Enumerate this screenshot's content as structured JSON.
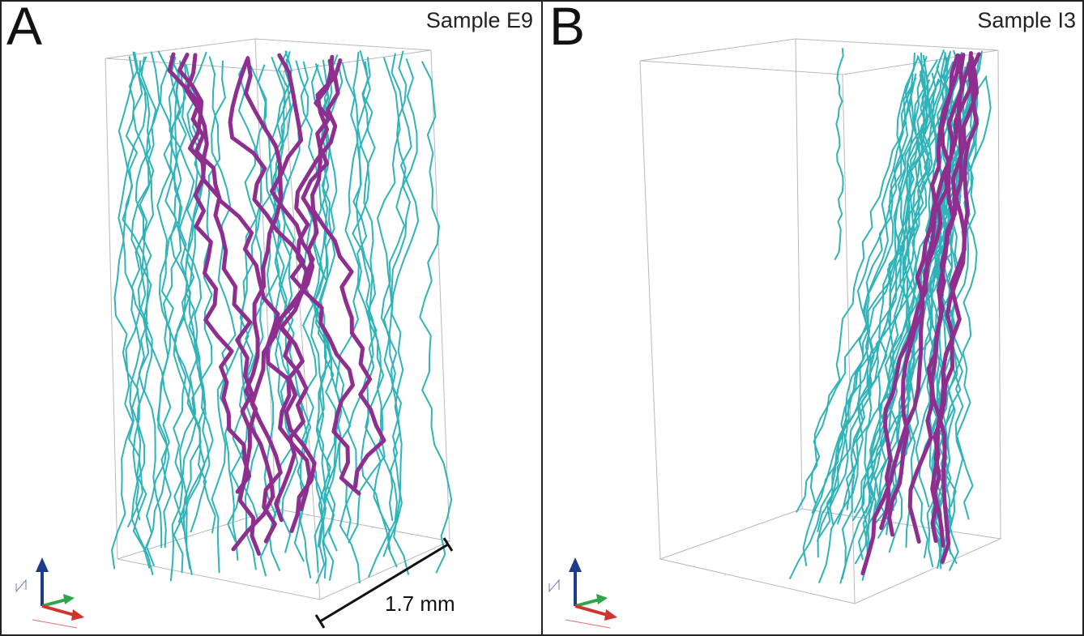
{
  "figure": {
    "panels": [
      {
        "letter": "A",
        "sample": "Sample E9"
      },
      {
        "letter": "B",
        "sample": "Sample I3"
      }
    ],
    "scale_bar": "1.7 mm"
  },
  "colors": {
    "primary_network": "#2fb3b8",
    "secondary_network": "#8e2f8f",
    "box_edge": "#b8b8b8",
    "axis_z": "#1d3c8a",
    "axis_y": "#2da54a",
    "axis_x": "#d0342c"
  },
  "icons": [
    "orientation-axes-icon"
  ]
}
